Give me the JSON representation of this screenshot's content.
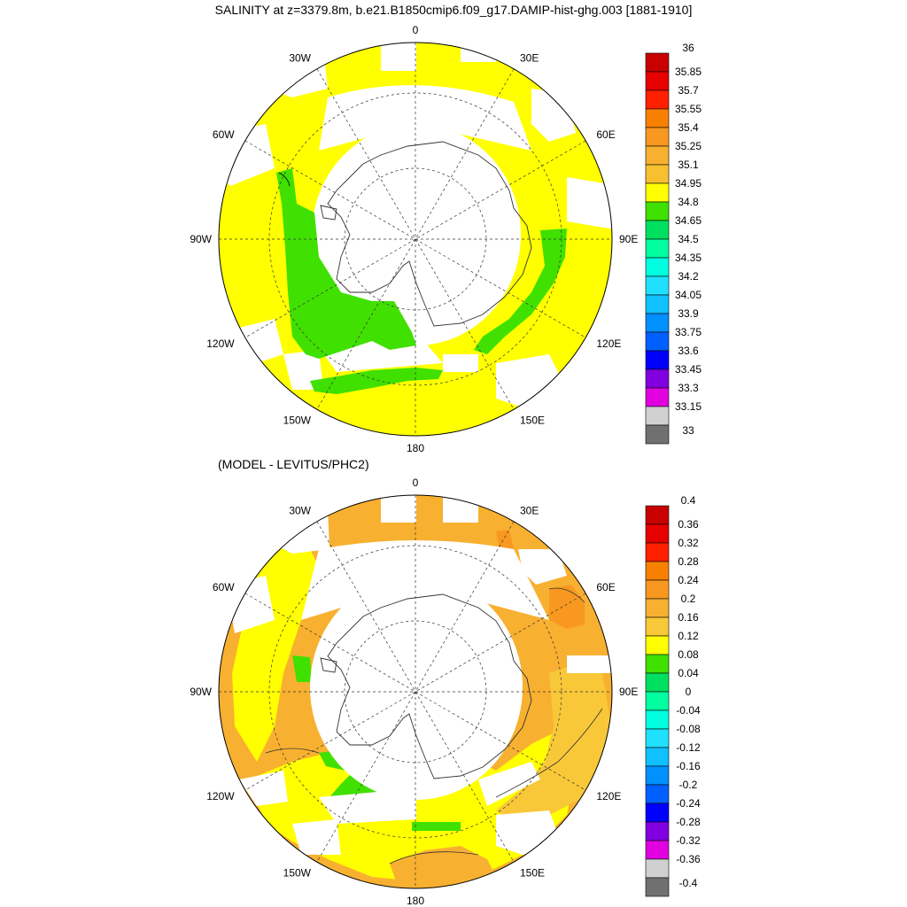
{
  "title": "SALINITY at z=3379.8m, b.e21.B1850cmip6.f09_g17.DAMIP-hist-ghg.003 [1881-1910]",
  "subtitle": "(MODEL - LEVITUS/PHC2)",
  "longitude_labels": [
    "0",
    "30E",
    "60E",
    "90E",
    "120E",
    "150E",
    "180",
    "150W",
    "120W",
    "90W",
    "60W",
    "30W"
  ],
  "chart_data": [
    {
      "type": "heatmap",
      "projection": "south-polar-stereographic",
      "variable": "SALINITY",
      "depth": "z=3379.8m",
      "colorbar": {
        "labels": [
          "36",
          "35.85",
          "35.7",
          "35.55",
          "35.4",
          "35.25",
          "35.1",
          "34.95",
          "34.8",
          "34.65",
          "34.5",
          "34.35",
          "34.2",
          "34.05",
          "33.9",
          "33.75",
          "33.6",
          "33.45",
          "33.3",
          "33.15",
          "33"
        ],
        "colors": [
          "#c80000",
          "#e60000",
          "#ff2000",
          "#f88000",
          "#f89820",
          "#f8b030",
          "#f8c030",
          "#ffff00",
          "#40e000",
          "#00e060",
          "#00ffa0",
          "#00ffe0",
          "#20e0ff",
          "#10c0ff",
          "#0090ff",
          "#0060ff",
          "#0000ff",
          "#8000e0",
          "#e000e0",
          "#d0d0d0",
          "#707070"
        ]
      },
      "dominant_values": [
        {
          "range": "34.8-34.95",
          "color": "#ffff00",
          "extent": "most of the domain"
        },
        {
          "range": "34.65-34.8",
          "color": "#40e000",
          "extent": "near-shelf basins (Ross/Bellingshausen sector, east Antarctic margin)"
        }
      ]
    },
    {
      "type": "heatmap",
      "projection": "south-polar-stereographic",
      "variable": "SALINITY difference",
      "colorbar": {
        "labels": [
          "0.4",
          "0.36",
          "0.32",
          "0.28",
          "0.24",
          "0.2",
          "0.16",
          "0.12",
          "0.08",
          "0.04",
          "0",
          "-0.04",
          "-0.08",
          "-0.12",
          "-0.16",
          "-0.2",
          "-0.24",
          "-0.28",
          "-0.32",
          "-0.36",
          "-0.4"
        ],
        "colors": [
          "#c80000",
          "#e60000",
          "#ff2000",
          "#f88000",
          "#f89820",
          "#f8b030",
          "#f8c838",
          "#ffff00",
          "#40e000",
          "#00e060",
          "#00ffa0",
          "#00ffe0",
          "#20e0ff",
          "#10c0ff",
          "#0090ff",
          "#0060ff",
          "#0000ff",
          "#8000e0",
          "#e000e0",
          "#d0d0d0",
          "#707070"
        ]
      },
      "dominant_values": [
        {
          "range": "0.16-0.2",
          "color": "#f8b030",
          "extent": "Atlantic/Indian sector and 90W-150W"
        },
        {
          "range": "0.12-0.16",
          "color": "#f8c838",
          "extent": "east Indian sector"
        },
        {
          "range": "0.08-0.12",
          "color": "#ffff00",
          "extent": "Pacific sector"
        },
        {
          "range": "0.04-0.08",
          "color": "#40e000",
          "extent": "Ross Sea area and small patches"
        },
        {
          "range": "0.2-0.24",
          "color": "#f89820",
          "extent": "small patches near 30E and 60E"
        }
      ]
    }
  ]
}
